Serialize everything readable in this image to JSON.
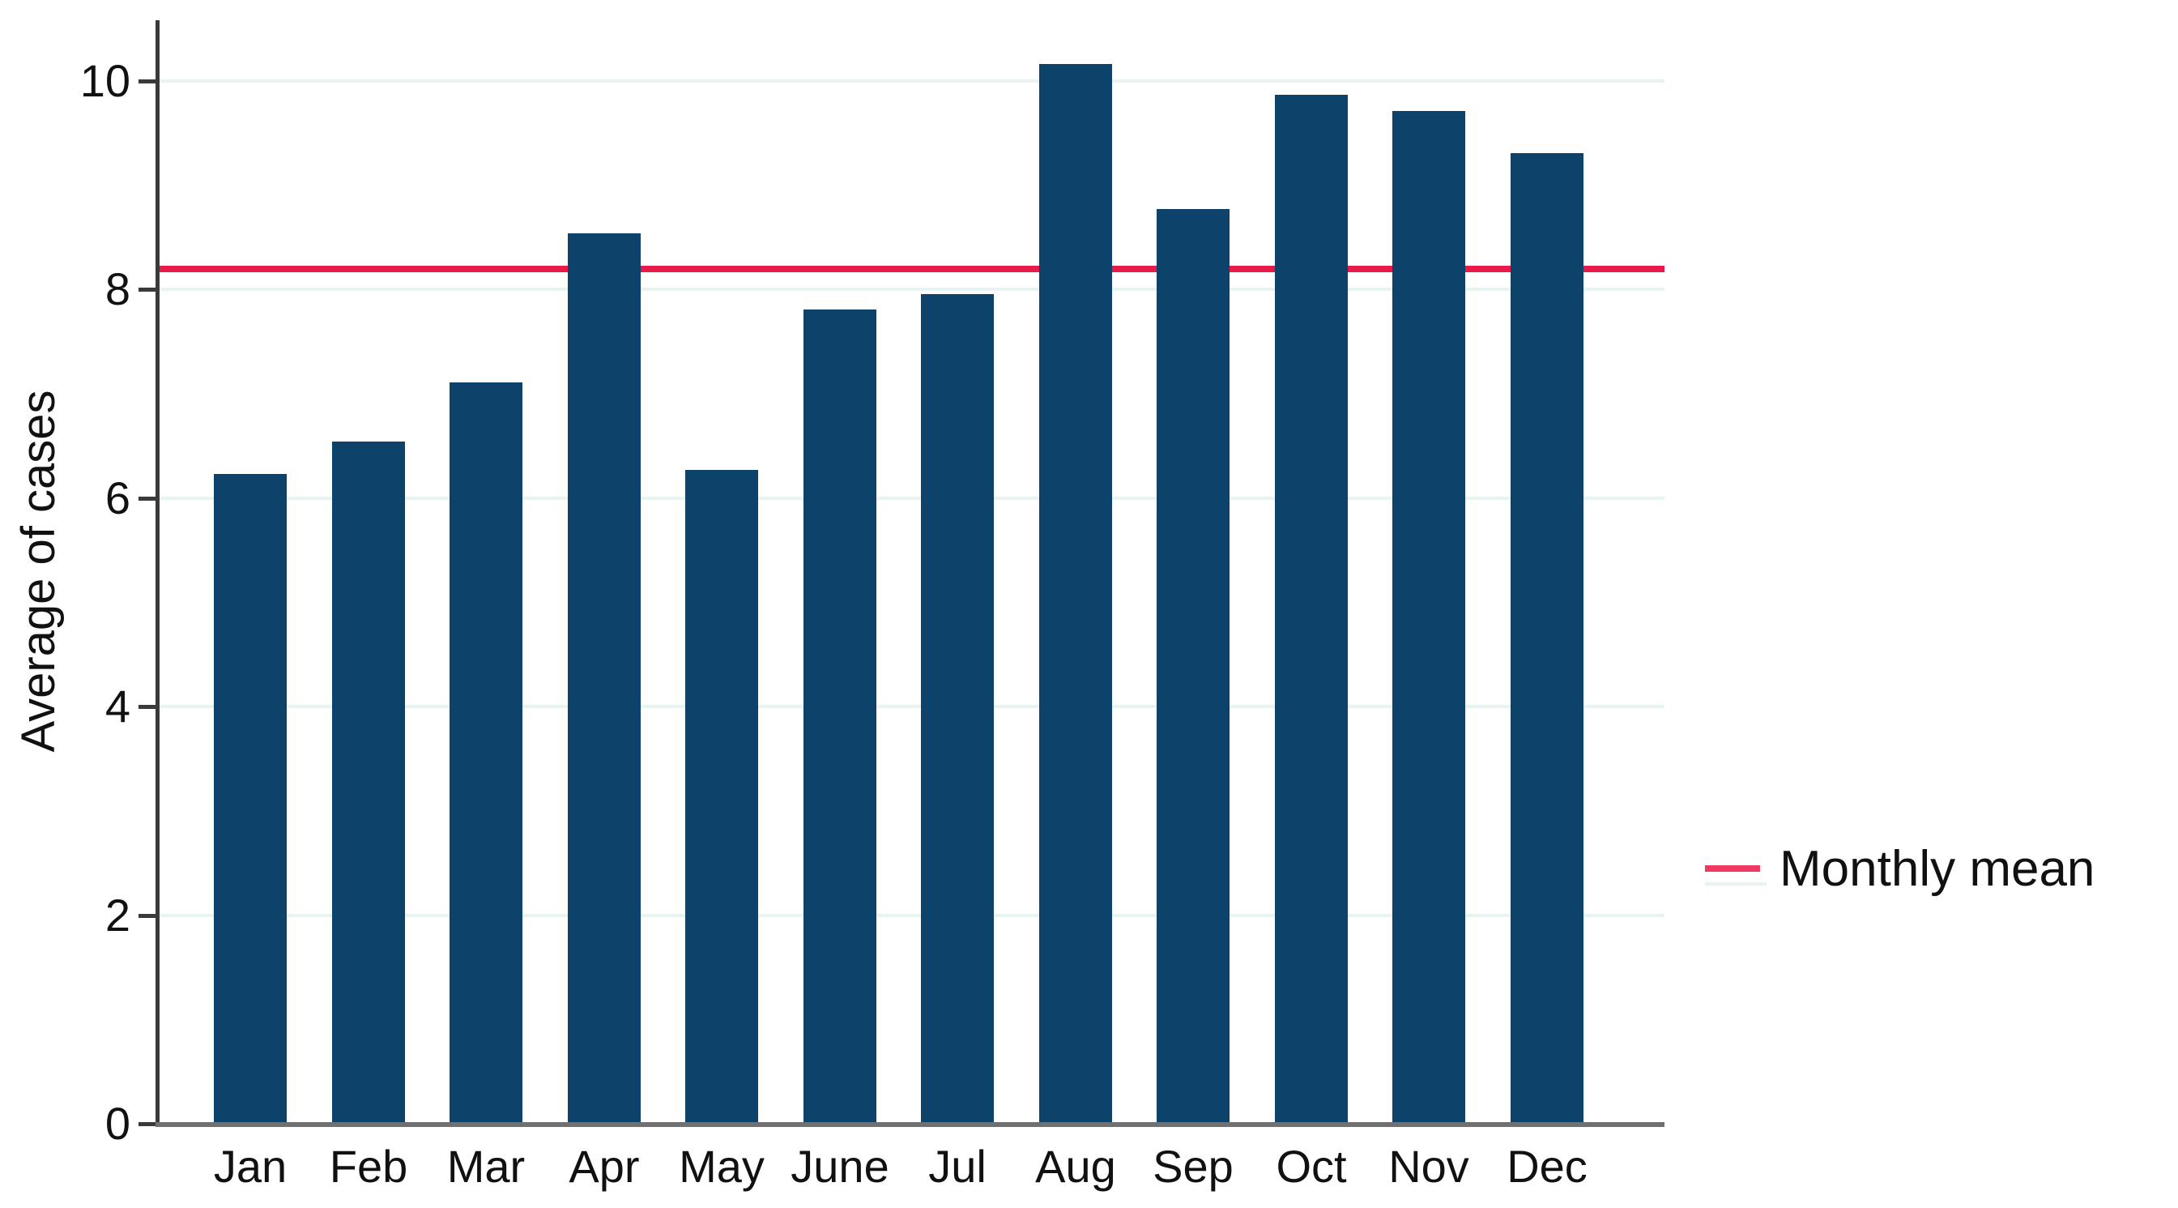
{
  "figure": {
    "ylabel": "Average of cases",
    "legend": {
      "label": "Monthly mean"
    }
  },
  "chart_data": {
    "type": "bar",
    "categories": [
      "Jan",
      "Feb",
      "Mar",
      "Apr",
      "May",
      "June",
      "Jul",
      "Aug",
      "Sep",
      "Oct",
      "Nov",
      "Dec"
    ],
    "values": [
      6.23,
      6.54,
      7.11,
      8.54,
      6.27,
      7.81,
      7.96,
      10.16,
      8.77,
      9.87,
      9.71,
      9.31
    ],
    "title": "",
    "xlabel": "",
    "ylabel": "Average of cases",
    "ylim": [
      0,
      10.55
    ],
    "yticks": [
      0,
      2,
      4,
      6,
      8,
      10
    ],
    "grid": true,
    "legend_position": "right-middle",
    "legend_entries": [
      "Monthly mean"
    ],
    "mean_line": {
      "label": "Monthly mean",
      "value": 8.2
    },
    "colors": {
      "bar": "#0d436a",
      "mean_line": "#e91a49",
      "legend_swatch": "#ef3960",
      "grid": "#e8f4f2",
      "y_axis": "#3a3a3a",
      "x_axis": "#707070",
      "text": "#111111"
    }
  }
}
